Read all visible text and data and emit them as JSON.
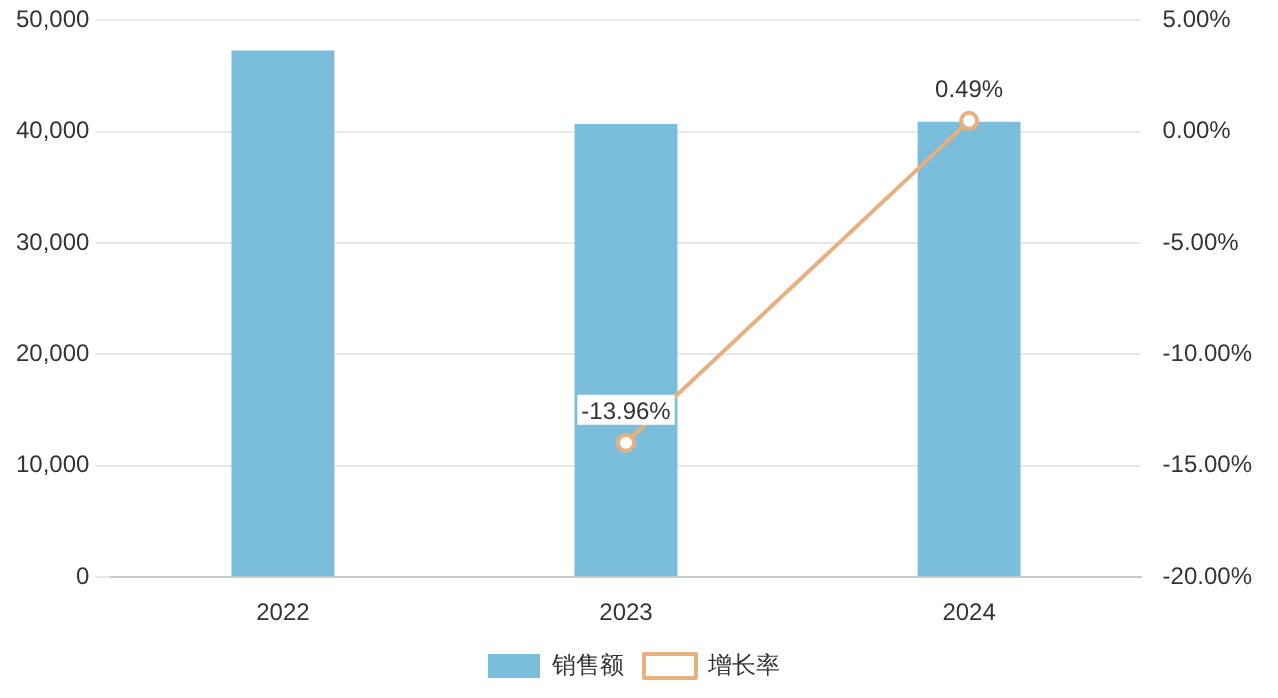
{
  "chart_data": {
    "type": "bar",
    "categories": [
      "2022",
      "2023",
      "2024"
    ],
    "series": [
      {
        "name": "销售额",
        "color": "#7bbedb",
        "values": [
          47300,
          40700,
          40900
        ]
      },
      {
        "name": "增长率",
        "type": "line",
        "axis": "y2",
        "color": "#e9b07f",
        "marker": "circle",
        "values": [
          null,
          -13.96,
          0.49
        ],
        "value_labels": [
          null,
          "-13.96%",
          "0.49%"
        ]
      }
    ],
    "ylim": [
      0,
      50000
    ],
    "yticks": [
      {
        "value": 0,
        "label": "0"
      },
      {
        "value": 10000,
        "label": "10,000"
      },
      {
        "value": 20000,
        "label": "20,000"
      },
      {
        "value": 30000,
        "label": "30,000"
      },
      {
        "value": 40000,
        "label": "40,000"
      },
      {
        "value": 50000,
        "label": "50,000"
      }
    ],
    "y2lim": [
      -20,
      5
    ],
    "y2ticks": [
      {
        "value": -20,
        "label": "-20.00%"
      },
      {
        "value": -15,
        "label": "-15.00%"
      },
      {
        "value": -10,
        "label": "-10.00%"
      },
      {
        "value": -5,
        "label": "-5.00%"
      },
      {
        "value": 0,
        "label": "0.00%"
      },
      {
        "value": 5,
        "label": "5.00%"
      }
    ],
    "grid": "y",
    "legend": "bottom"
  }
}
